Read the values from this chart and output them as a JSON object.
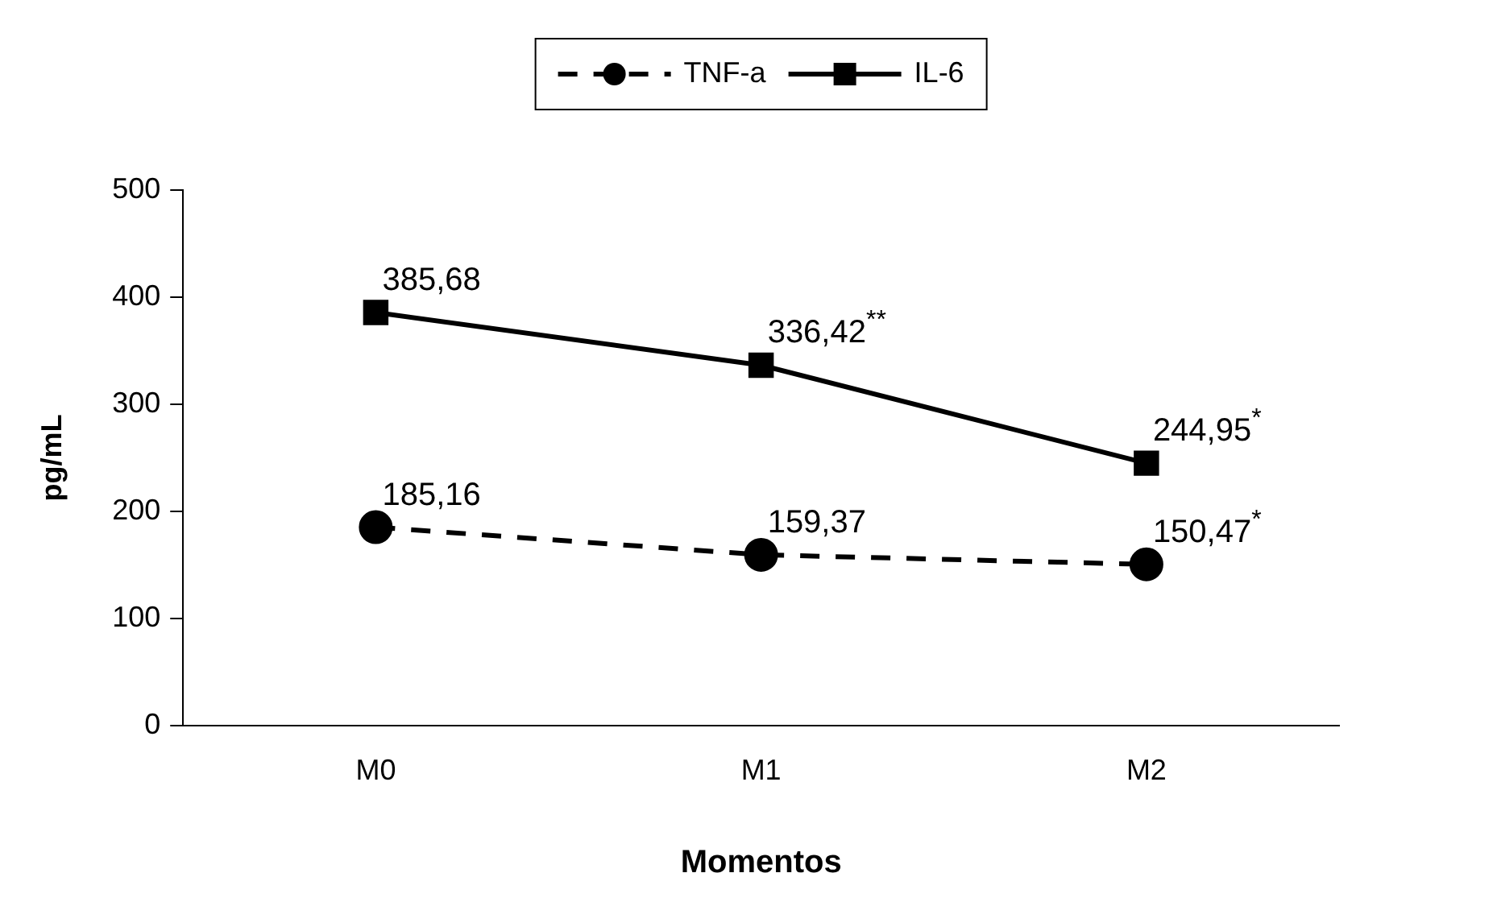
{
  "chart_data": {
    "type": "line",
    "xlabel": "Momentos",
    "ylabel": "pg/mL",
    "categories": [
      "M0",
      "M1",
      "M2"
    ],
    "series": [
      {
        "name": "TNF-a",
        "color": "#000000",
        "values": [
          185.16,
          159.37,
          150.47
        ],
        "line_style": "dashed",
        "marker": "circle",
        "value_labels": [
          "185,16",
          "159,37",
          "150,47$^{*}$"
        ]
      },
      {
        "name": "IL-6",
        "color": "#000000",
        "values": [
          385.68,
          336.42,
          244.95
        ],
        "line_style": "solid",
        "marker": "square",
        "value_labels": [
          "385,68",
          "336,42$^{**}$",
          "244,95$^{*}$"
        ]
      }
    ],
    "ylim": [
      0,
      500
    ],
    "yticks": [
      0,
      100,
      200,
      300,
      400,
      500
    ],
    "grid": false,
    "legend": "top"
  }
}
